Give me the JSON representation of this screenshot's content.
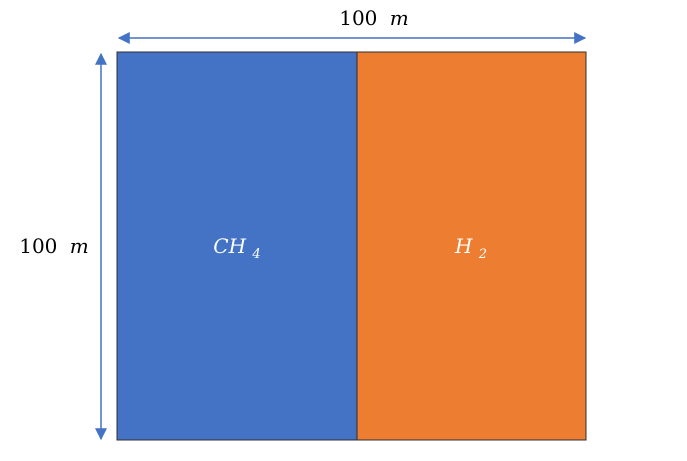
{
  "dimensions": {
    "width": {
      "value": "100",
      "unit": "m"
    },
    "height": {
      "value": "100",
      "unit": "m"
    }
  },
  "regions": [
    {
      "label": "CH",
      "subscript": "4",
      "color": "#4472C4"
    },
    {
      "label": "H",
      "subscript": "2",
      "color": "#ED7D31"
    }
  ],
  "colors": {
    "arrow": "#4472C4",
    "border": "#2F2F2F"
  }
}
